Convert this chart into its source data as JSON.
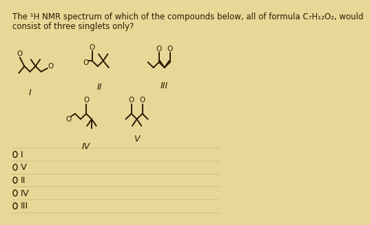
{
  "title_line1": "The ¹H NMR spectrum of which of the compounds below, all of formula C₇H₁₂O₂, would",
  "title_line2": "consist of three singlets only?",
  "bg_color": "#e8d898",
  "text_color": "#2a1a00",
  "options": [
    "I",
    "V",
    "II",
    "IV",
    "III"
  ],
  "title_fontsize": 8.5,
  "option_fontsize": 9.5,
  "lw": 1.4
}
